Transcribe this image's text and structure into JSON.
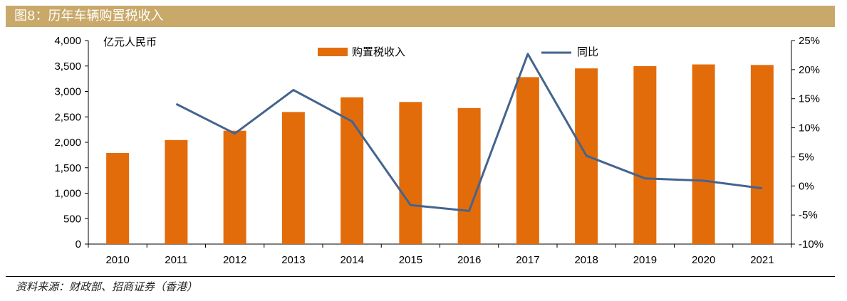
{
  "title": "图8：历年车辆购置税收入",
  "source": "资料来源：财政部、招商证券（香港）",
  "chart_data": {
    "type": "bar",
    "categories": [
      "2010",
      "2011",
      "2012",
      "2013",
      "2014",
      "2015",
      "2016",
      "2017",
      "2018",
      "2019",
      "2020",
      "2021"
    ],
    "series": [
      {
        "name": "购置税收入",
        "type": "bar",
        "axis": "left",
        "color": "#e36c0a",
        "values": [
          1790,
          2045,
          2228,
          2596,
          2885,
          2793,
          2674,
          3281,
          3453,
          3498,
          3531,
          3520
        ]
      },
      {
        "name": "同比",
        "type": "line",
        "axis": "right",
        "color": "#44648f",
        "values": [
          null,
          14.1,
          9.0,
          16.5,
          11.1,
          -3.3,
          -4.3,
          22.7,
          5.2,
          1.3,
          0.9,
          -0.4
        ]
      }
    ],
    "ylabel": "亿元人民币",
    "ylim": [
      0,
      4000
    ],
    "yticks": [
      "0",
      "500",
      "1,000",
      "1,500",
      "2,000",
      "2,500",
      "3,000",
      "3,500",
      "4,000"
    ],
    "y2lim": [
      -10,
      25
    ],
    "y2ticks": [
      "-10%",
      "-5%",
      "0%",
      "5%",
      "10%",
      "15%",
      "20%",
      "25%"
    ],
    "legend": "top",
    "grid": false
  }
}
